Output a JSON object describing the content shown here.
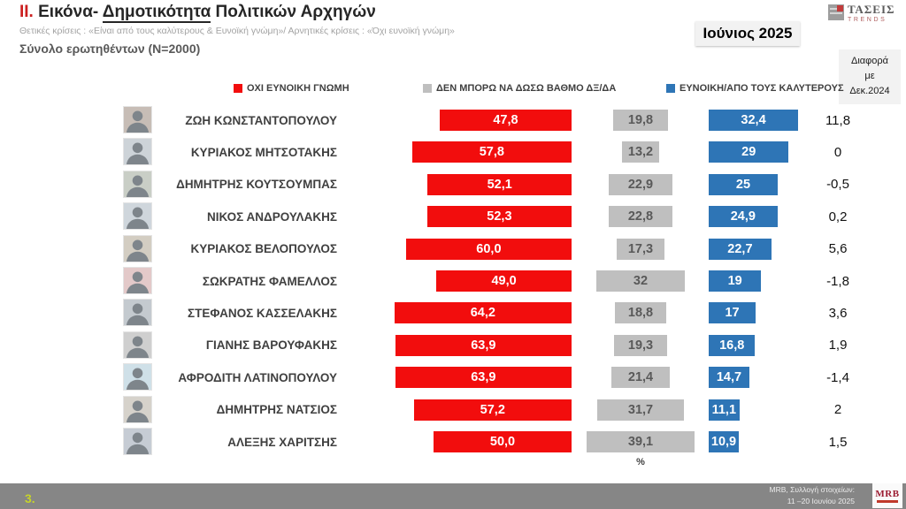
{
  "header": {
    "numeral": "II.",
    "title_part1": " Εικόνα- ",
    "title_underlined": "Δημοτικότητα",
    "title_part2": " Πολιτικών Αρχηγών",
    "subtitle": "Θετικές κρίσεις : «Είναι από τους καλύτερους &  Ευνοϊκή γνώμη»/ Αρνητικές κρίσεις : «Όχι ευνοϊκή γνώμη»",
    "sample": "Σύνολο ερωτηθέντων (N=2000)",
    "date_badge": "Ιούνιος 2025",
    "brand": {
      "line1": "ΤΑΣΕΙΣ",
      "line2": "TRENDS"
    }
  },
  "chart_data": {
    "type": "bar",
    "orientation": "horizontal",
    "unit": "%",
    "categories": [
      "ΖΩΗ ΚΩΝΣΤΑΝΤΟΠΟΥΛΟΥ",
      "ΚΥΡΙΑΚΟΣ ΜΗΤΣΟΤΑΚΗΣ",
      "ΔΗΜΗΤΡΗΣ ΚΟΥΤΣΟΥΜΠΑΣ",
      "ΝΙΚΟΣ ΑΝΔΡΟΥΛΑΚΗΣ",
      "ΚΥΡΙΑΚΟΣ ΒΕΛΟΠΟΥΛΟΣ",
      "ΣΩΚΡΑΤΗΣ ΦΑΜΕΛΛΟΣ",
      "ΣΤΕΦΑΝΟΣ ΚΑΣΣΕΛΑΚΗΣ",
      "ΓΙΑΝΗΣ ΒΑΡΟΥΦΑΚΗΣ",
      "ΑΦΡΟΔΙΤΗ ΛΑΤΙΝΟΠΟΥΛΟΥ",
      "ΔΗΜΗΤΡΗΣ ΝΑΤΣΙΟΣ",
      "ΑΛΕΞΗΣ ΧΑΡΙΤΣΗΣ"
    ],
    "series": [
      {
        "name": "ΟΧΙ ΕΥΝΟΙΚΗ ΓΝΩΜΗ",
        "color": "#f20d0d",
        "values": [
          "47,8",
          "57,8",
          "52,1",
          "52,3",
          "60,0",
          "49,0",
          "64,2",
          "63,9",
          "63,9",
          "57,2",
          "50,0"
        ]
      },
      {
        "name": "ΔΕΝ ΜΠΟΡΩ ΝΑ ΔΩΣΩ ΒΑΘΜΟ ΔΞ/ΔΑ",
        "color": "#bfbfbf",
        "values": [
          "19,8",
          "13,2",
          "22,9",
          "22,8",
          "17,3",
          "32",
          "18,8",
          "19,3",
          "21,4",
          "31,7",
          "39,1"
        ]
      },
      {
        "name": "ΕΥΝΟΙΚΗ/ΑΠΟ ΤΟΥΣ ΚΑΛΥΤΕΡΟΥΣ",
        "color": "#2e75b6",
        "values": [
          "32,4",
          "29",
          "25",
          "24,9",
          "22,7",
          "19",
          "17",
          "16,8",
          "14,7",
          "11,1",
          "10,9"
        ]
      }
    ],
    "diff_column": {
      "header_lines": [
        "Διαφορά",
        "με",
        "Δεκ.2024"
      ],
      "values": [
        "11,8",
        "0",
        "-0,5",
        "0,2",
        "5,6",
        "-1,8",
        "3,6",
        "1,9",
        "-1,4",
        "2",
        "1,5"
      ]
    },
    "legend_position": "top",
    "xlim": [
      0,
      70
    ]
  },
  "footer": {
    "page_number": "3.",
    "source_line1": "MRB, Συλλογή στοιχείων:",
    "source_line2": "11 –20 Ιουνίου 2025",
    "logo_text": "MRB"
  }
}
